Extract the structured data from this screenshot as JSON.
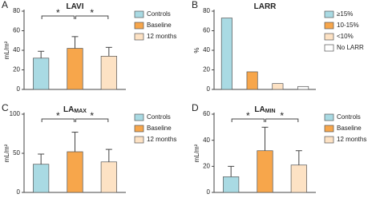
{
  "chart_data": [
    {
      "type": "bar",
      "panel": "A",
      "title": "LAVI",
      "ylabel": "mL/m²",
      "categories": [
        "Controls",
        "Baseline",
        "12 months"
      ],
      "values": [
        32,
        42,
        34
      ],
      "errors": [
        7,
        12,
        9
      ],
      "colors": [
        "#a9dae3",
        "#f7a64b",
        "#fde2c4"
      ],
      "ylim": [
        0,
        80
      ],
      "yticks": [
        0,
        20,
        40,
        60,
        80
      ],
      "significance": [
        {
          "label": "*",
          "between": [
            0,
            1
          ]
        },
        {
          "label": "*",
          "between": [
            1,
            2
          ]
        }
      ]
    },
    {
      "type": "bar",
      "panel": "B",
      "title": "LARR",
      "ylabel": "%",
      "categories": [
        "≥15%",
        "10-15%",
        "<10%",
        "No LARR"
      ],
      "values": [
        73,
        18,
        6,
        3
      ],
      "colors": [
        "#a9dae3",
        "#f7a64b",
        "#fde2c4",
        "#ffffff"
      ],
      "ylim": [
        0,
        80
      ],
      "yticks": [
        0,
        20,
        40,
        60,
        80
      ]
    },
    {
      "type": "bar",
      "panel": "C",
      "title": "LA",
      "title_sub": "MAX",
      "ylabel": "mL/m²",
      "categories": [
        "Controls",
        "Baseline",
        "12 months"
      ],
      "values": [
        36,
        52,
        39
      ],
      "errors": [
        13,
        25,
        16
      ],
      "colors": [
        "#a9dae3",
        "#f7a64b",
        "#fde2c4"
      ],
      "ylim": [
        0,
        100
      ],
      "yticks": [
        0,
        50,
        100
      ],
      "significance": [
        {
          "label": "*",
          "between": [
            0,
            1
          ]
        },
        {
          "label": "*",
          "between": [
            1,
            2
          ]
        }
      ]
    },
    {
      "type": "bar",
      "panel": "D",
      "title": "LA",
      "title_sub": "MIN",
      "ylabel": "mL/m²",
      "categories": [
        "Controls",
        "Baseline",
        "12 months"
      ],
      "values": [
        12,
        32,
        21
      ],
      "errors": [
        8,
        18,
        11
      ],
      "colors": [
        "#a9dae3",
        "#f7a64b",
        "#fde2c4"
      ],
      "ylim": [
        0,
        60
      ],
      "yticks": [
        0,
        20,
        40,
        60
      ],
      "significance": [
        {
          "label": "*",
          "between": [
            0,
            1
          ]
        },
        {
          "label": "*",
          "between": [
            1,
            2
          ]
        }
      ]
    }
  ]
}
